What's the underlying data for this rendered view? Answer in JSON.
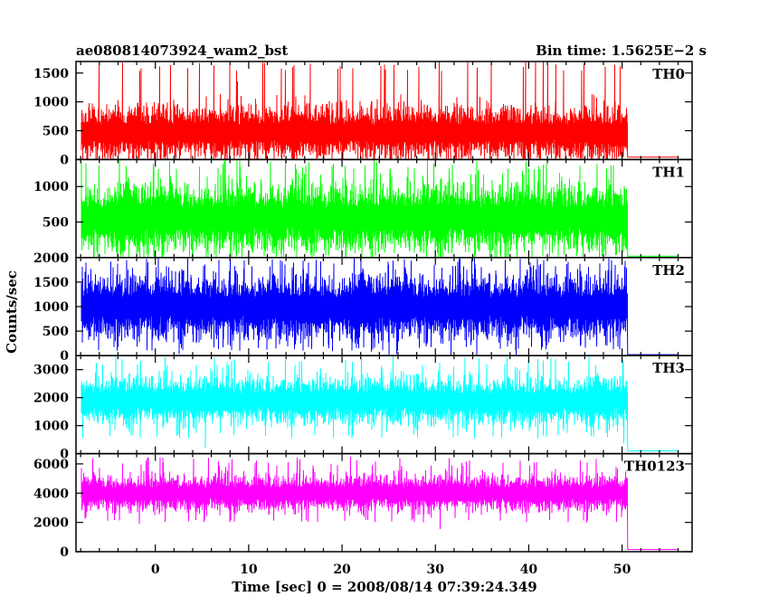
{
  "header": {
    "title": "ae080814073924_wam2_bst",
    "bin_time": "Bin time: 1.5625E−2 s"
  },
  "chart_data": {
    "type": "line",
    "xlabel": "Time [sec] 0 = 2008/08/14 07:39:24.349",
    "ylabel": "Counts/sec",
    "xlim": [
      -8.5,
      57.5
    ],
    "x_ticks": [
      0,
      10,
      20,
      30,
      40,
      50
    ],
    "grid": false,
    "panels": [
      {
        "name": "TH0",
        "color": "#ff0000",
        "ylim": [
          0,
          1700
        ],
        "yticks": [
          0,
          500,
          1000,
          1500
        ],
        "data_range": [
          -8,
          50.6
        ],
        "level": 470,
        "spread": 210,
        "peak": 1700,
        "trough": 20,
        "tail": {
          "x": [
            50.6,
            56
          ],
          "value": 40
        }
      },
      {
        "name": "TH1",
        "color": "#00ff00",
        "ylim": [
          0,
          1380
        ],
        "yticks": [
          0,
          500,
          1000
        ],
        "data_range": [
          -8,
          50.6
        ],
        "level": 560,
        "spread": 220,
        "peak": 1380,
        "trough": 50,
        "tail": {
          "x": [
            50.6,
            56
          ],
          "value": 20
        }
      },
      {
        "name": "TH2",
        "color": "#0000ff",
        "ylim": [
          0,
          2000
        ],
        "yticks": [
          0,
          500,
          1000,
          1500,
          2000
        ],
        "data_range": [
          -8,
          50.6
        ],
        "level": 1000,
        "spread": 300,
        "peak": 2000,
        "trough": 100,
        "tail": {
          "x": [
            50.6,
            56
          ],
          "value": 20
        }
      },
      {
        "name": "TH3",
        "color": "#00ffff",
        "ylim": [
          0,
          3500
        ],
        "yticks": [
          0,
          1000,
          2000,
          3000
        ],
        "data_range": [
          -8,
          50.6
        ],
        "level": 1900,
        "spread": 380,
        "peak": 3500,
        "trough": 550,
        "tail": {
          "x": [
            50.6,
            56
          ],
          "value": 100
        }
      },
      {
        "name": "TH0123",
        "color": "#ff00ff",
        "ylim": [
          0,
          6700
        ],
        "yticks": [
          0,
          2000,
          4000,
          6000
        ],
        "data_range": [
          -8,
          50.6
        ],
        "level": 4000,
        "spread": 550,
        "peak": 6500,
        "trough": 2000,
        "tail": {
          "x": [
            50.6,
            56
          ],
          "value": 150
        }
      }
    ]
  }
}
